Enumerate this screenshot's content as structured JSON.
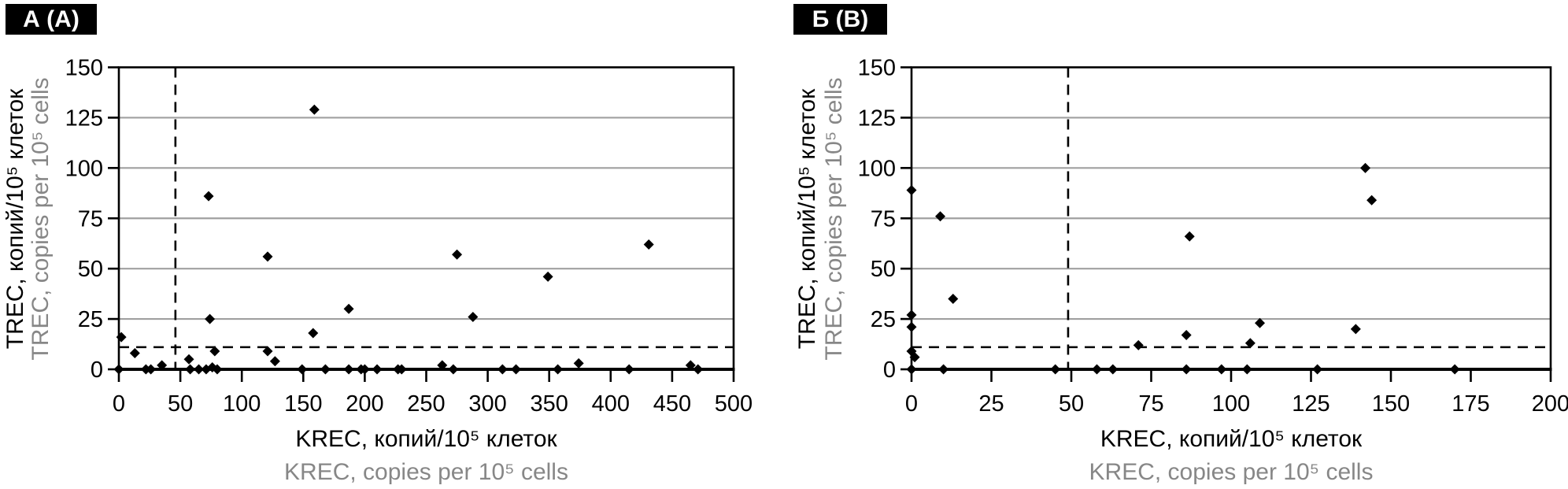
{
  "colors": {
    "marker": "#000000",
    "axis": "#000000",
    "grid_line": "#a0a0a0",
    "primary_text": "#000000",
    "secondary_text": "#878787",
    "panel_label_bg": "#000000",
    "panel_label_text": "#ffffff",
    "background": "#ffffff"
  },
  "chart_data": [
    {
      "type": "scatter",
      "panel_label": "А (А)",
      "xlabel_ru": "KREC, копий/10⁵ клеток",
      "xlabel_en": "KREC, copies per 10⁵ cells",
      "ylabel_ru": "TREC, копий/10⁵ клеток",
      "ylabel_en": "TREC, copies per 10⁵ cells",
      "xlim": [
        0,
        500
      ],
      "ylim": [
        0,
        150
      ],
      "x_ticks": [
        0,
        50,
        100,
        150,
        200,
        250,
        300,
        350,
        400,
        450,
        500
      ],
      "y_ticks": [
        0,
        25,
        50,
        75,
        100,
        125,
        150
      ],
      "grid_y": [
        25,
        50,
        75,
        100,
        125
      ],
      "threshold_x": 46,
      "threshold_y": 11,
      "marker": "diamond",
      "points": [
        [
          0,
          0
        ],
        [
          2,
          16
        ],
        [
          13,
          8
        ],
        [
          22,
          0
        ],
        [
          26,
          0
        ],
        [
          35,
          2
        ],
        [
          57,
          5
        ],
        [
          58,
          0
        ],
        [
          65,
          0
        ],
        [
          71,
          0
        ],
        [
          74,
          25
        ],
        [
          73,
          86
        ],
        [
          76,
          1
        ],
        [
          78,
          9
        ],
        [
          80,
          0
        ],
        [
          121,
          56
        ],
        [
          121,
          9
        ],
        [
          127,
          4
        ],
        [
          149,
          0
        ],
        [
          158,
          18
        ],
        [
          159,
          129
        ],
        [
          168,
          0
        ],
        [
          187,
          30
        ],
        [
          187,
          0
        ],
        [
          197,
          0
        ],
        [
          200,
          0
        ],
        [
          210,
          0
        ],
        [
          227,
          0
        ],
        [
          230,
          0
        ],
        [
          263,
          2
        ],
        [
          272,
          0
        ],
        [
          275,
          57
        ],
        [
          288,
          26
        ],
        [
          312,
          0
        ],
        [
          323,
          0
        ],
        [
          349,
          46
        ],
        [
          357,
          0
        ],
        [
          374,
          3
        ],
        [
          415,
          0
        ],
        [
          431,
          62
        ],
        [
          465,
          2
        ],
        [
          471,
          0
        ]
      ]
    },
    {
      "type": "scatter",
      "panel_label": "Б (В)",
      "xlabel_ru": "KREC, копий/10⁵ клеток",
      "xlabel_en": "KREC, copies per 10⁵ cells",
      "ylabel_ru": "TREC, копий/10⁵ клеток",
      "ylabel_en": "TREC, copies per 10⁵ cells",
      "xlim": [
        0,
        200
      ],
      "ylim": [
        0,
        150
      ],
      "x_ticks": [
        0,
        25,
        50,
        75,
        100,
        125,
        150,
        175,
        200
      ],
      "y_ticks": [
        0,
        25,
        50,
        75,
        100,
        125,
        150
      ],
      "grid_y": [
        25,
        50,
        75,
        100,
        125
      ],
      "threshold_x": 49,
      "threshold_y": 11,
      "marker": "diamond",
      "points": [
        [
          0,
          0
        ],
        [
          0,
          89
        ],
        [
          0,
          27
        ],
        [
          0,
          21
        ],
        [
          0,
          9
        ],
        [
          1,
          6
        ],
        [
          9,
          76
        ],
        [
          10,
          0
        ],
        [
          13,
          35
        ],
        [
          45,
          0
        ],
        [
          58,
          0
        ],
        [
          63,
          0
        ],
        [
          71,
          12
        ],
        [
          86,
          17
        ],
        [
          86,
          0
        ],
        [
          87,
          66
        ],
        [
          97,
          0
        ],
        [
          105,
          0
        ],
        [
          106,
          13
        ],
        [
          109,
          23
        ],
        [
          127,
          0
        ],
        [
          139,
          20
        ],
        [
          142,
          100
        ],
        [
          144,
          84
        ],
        [
          170,
          0
        ]
      ]
    }
  ]
}
